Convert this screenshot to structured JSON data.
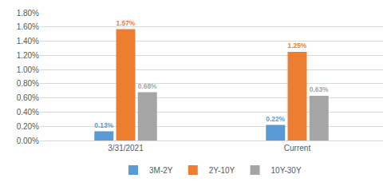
{
  "chart_data": {
    "type": "bar",
    "categories": [
      "3/31/2021",
      "Current"
    ],
    "series": [
      {
        "name": "3M-2Y",
        "color": "#5B9BD5",
        "values": [
          0.13,
          0.22
        ],
        "value_labels": [
          "0.13%",
          "0.22%"
        ]
      },
      {
        "name": "2Y-10Y",
        "color": "#ED7D31",
        "values": [
          1.57,
          1.25
        ],
        "value_labels": [
          "1.57%",
          "1.25%"
        ]
      },
      {
        "name": "10Y-30Y",
        "color": "#A5A5A5",
        "values": [
          0.68,
          0.63
        ],
        "value_labels": [
          "0.68%",
          "0.63%"
        ]
      }
    ],
    "ylim": [
      0,
      1.8
    ],
    "yticks": [
      {
        "value": 0,
        "label": "0.00%"
      },
      {
        "value": 0.2,
        "label": "0.20%"
      },
      {
        "value": 0.4,
        "label": "0.40%"
      },
      {
        "value": 0.6,
        "label": "0.60%"
      },
      {
        "value": 0.8,
        "label": "0.80%"
      },
      {
        "value": 1.0,
        "label": "1.00%"
      },
      {
        "value": 1.2,
        "label": "1.20%"
      },
      {
        "value": 1.4,
        "label": "1.40%"
      },
      {
        "value": 1.6,
        "label": "1.60%"
      },
      {
        "value": 1.8,
        "label": "1.80%"
      }
    ],
    "grid": true,
    "legend": "bottom",
    "data_labels": true
  }
}
